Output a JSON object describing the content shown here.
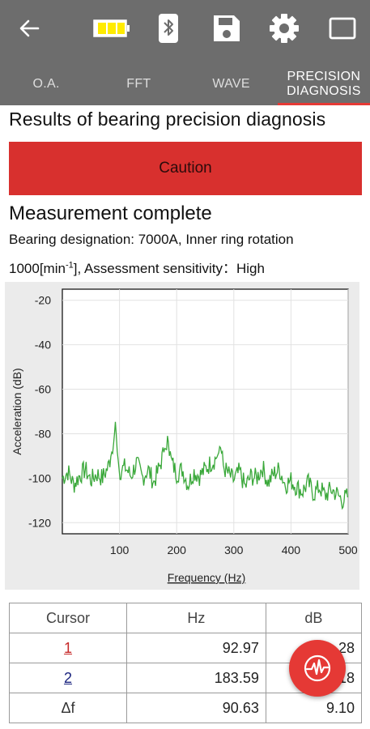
{
  "toolbar": {
    "icons": [
      "arrow-back-icon",
      "battery-icon",
      "bluetooth-icon",
      "save-icon",
      "gear-icon",
      "window-icon"
    ],
    "battery_color": "#ffeb00",
    "background": "#6d6d6d"
  },
  "tabs": [
    {
      "label": "O.A.",
      "active": false
    },
    {
      "label": "FFT",
      "active": false
    },
    {
      "label": "WAVE",
      "active": false
    },
    {
      "label_line1": "PRECISION",
      "label_line2": "DIAGNOSIS",
      "active": true
    }
  ],
  "results_title": "Results of bearing precision diagnosis",
  "status": {
    "label": "Caution",
    "color": "#d8302e"
  },
  "measurement": {
    "title": "Measurement complete",
    "line1": "Bearing designation: 7000A, Inner ring rotation",
    "line2_pre": "1000[min",
    "line2_sup": "-1",
    "line2_post": "], Assessment sensitivity：High"
  },
  "chart_data": {
    "type": "line",
    "xlabel": "Frequency (Hz)",
    "ylabel": "Acceleration (dB)",
    "xlim": [
      0,
      500
    ],
    "ylim": [
      -125,
      -15
    ],
    "x_ticks": [
      "100",
      "200",
      "300",
      "400",
      "500"
    ],
    "y_ticks": [
      "-20",
      "-40",
      "-60",
      "-80",
      "-100",
      "-120"
    ],
    "grid": true,
    "line_color": "#3aa83a",
    "series": [
      {
        "x": [
          0,
          10,
          20,
          30,
          40,
          50,
          60,
          70,
          80,
          85,
          90,
          93,
          96,
          100,
          110,
          120,
          130,
          140,
          150,
          160,
          170,
          178,
          184,
          190,
          200,
          210,
          220,
          230,
          240,
          250,
          260,
          270,
          276,
          282,
          290,
          300,
          310,
          320,
          330,
          340,
          350,
          360,
          370,
          380,
          390,
          400,
          410,
          420,
          430,
          440,
          450,
          460,
          470,
          480,
          490,
          500
        ],
        "y": [
          -100,
          -97,
          -103,
          -99,
          -96,
          -101,
          -98,
          -100,
          -95,
          -90,
          -84,
          -74,
          -88,
          -97,
          -95,
          -99,
          -93,
          -100,
          -96,
          -102,
          -95,
          -88,
          -81,
          -92,
          -98,
          -96,
          -103,
          -97,
          -99,
          -96,
          -93,
          -91,
          -85,
          -95,
          -98,
          -101,
          -97,
          -104,
          -99,
          -100,
          -95,
          -102,
          -98,
          -96,
          -103,
          -101,
          -104,
          -106,
          -102,
          -107,
          -104,
          -108,
          -105,
          -107,
          -110,
          -108
        ]
      }
    ]
  },
  "table": {
    "headers": [
      "Cursor",
      "Hz",
      "dB"
    ],
    "rows": [
      {
        "cursor": "1",
        "hz": "92.97",
        "db": "28"
      },
      {
        "cursor": "2",
        "hz": "183.59",
        "db": "18"
      },
      {
        "cursor": "Δf",
        "hz": "90.63",
        "db": "9.10"
      }
    ]
  },
  "fab": {
    "icon": "waveform-icon",
    "color": "#e53935"
  }
}
